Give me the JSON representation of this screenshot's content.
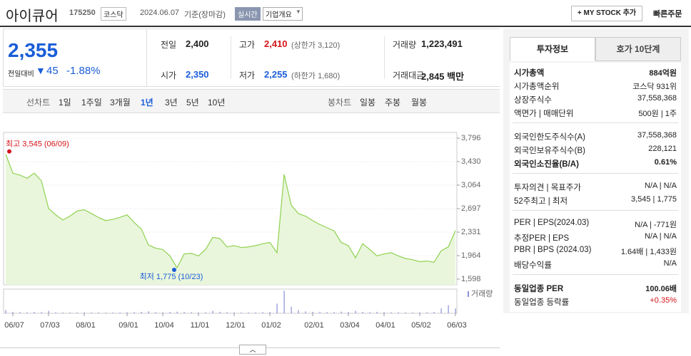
{
  "header": {
    "name": "아이큐어",
    "code": "175250",
    "market": "코스닥",
    "date": "2024.06.07",
    "basis": "기준(장마감)",
    "realtime": "실시간",
    "overview": "기업개요",
    "mystock": "+ MY STOCK 추가",
    "quick": "빠른주문"
  },
  "quote": {
    "price": "2,355",
    "change_label": "전일대비",
    "change": "45",
    "change_pct": "-1.88%"
  },
  "summary": [
    {
      "label": "전일",
      "value": "2,400"
    },
    {
      "label": "고가",
      "value": "2,410",
      "note": "(상한가 3,120)",
      "color": "#d4141a"
    },
    {
      "label": "거래량",
      "value": "1,223,491"
    },
    {
      "label": "시가",
      "value": "2,350",
      "color": "#1a5dd8"
    },
    {
      "label": "저가",
      "value": "2,255",
      "note": "(하한가 1,680)",
      "color": "#1a5dd8"
    },
    {
      "label": "거래대금",
      "value": "2,845 백만"
    }
  ],
  "line_tabs": {
    "label": "선차트",
    "items": [
      "1일",
      "1주일",
      "3개월",
      "1년",
      "3년",
      "5년",
      "10년"
    ],
    "selected": 3
  },
  "candle_tabs": {
    "label": "봉차트",
    "items": [
      "일봉",
      "주봉",
      "월봉"
    ]
  },
  "chart_data": {
    "type": "area",
    "color": "#8fd14f",
    "fill": "#e9f6dc",
    "ylim": [
      1598,
      3796
    ],
    "yticks": [
      {
        "value": 3796,
        "label": "3,796"
      },
      {
        "value": 3430,
        "label": "3,430"
      },
      {
        "value": 3064,
        "label": "3,064"
      },
      {
        "value": 2697,
        "label": "2,697"
      },
      {
        "value": 2331,
        "label": "2,331"
      },
      {
        "value": 1964,
        "label": "1,964"
      },
      {
        "value": 1598,
        "label": "1,598"
      }
    ],
    "categories": [
      null,
      "06/07",
      null,
      null,
      null,
      null,
      "07/03",
      null,
      null,
      null,
      null,
      "08/01",
      null,
      null,
      null,
      null,
      null,
      "09/01",
      null,
      null,
      null,
      null,
      "10/04",
      null,
      null,
      null,
      null,
      "11/01",
      null,
      null,
      null,
      null,
      "12/01",
      null,
      null,
      null,
      null,
      "01/02",
      null,
      null,
      null,
      null,
      null,
      "02/01",
      null,
      null,
      null,
      null,
      "03/04",
      null,
      null,
      null,
      null,
      "04/01",
      null,
      null,
      null,
      null,
      "05/02",
      null,
      null,
      null,
      null,
      "06/03"
    ],
    "values": [
      3545,
      3250,
      3220,
      3170,
      3250,
      3130,
      2700,
      2600,
      2520,
      2580,
      2660,
      2680,
      2620,
      2560,
      2510,
      2530,
      2560,
      2600,
      2480,
      2380,
      2130,
      2080,
      2060,
      1960,
      1775,
      1990,
      2000,
      1960,
      2060,
      2250,
      2230,
      2100,
      2120,
      2090,
      2100,
      2120,
      2150,
      2170,
      2010,
      3230,
      2750,
      2620,
      2580,
      2510,
      2450,
      2400,
      2350,
      2170,
      2120,
      1930,
      2150,
      2060,
      1960,
      1990,
      2010,
      1960,
      1920,
      1900,
      1870,
      1880,
      1860,
      2040,
      2100,
      2355
    ],
    "high_label": "최고 3,545 (06/09)",
    "low_label": "최저 1,775 (10/23)",
    "volume_label": "거래량",
    "volume_color": "#8a8fd6",
    "volume_ylim": [
      0,
      15000000
    ],
    "volume": [
      2000000,
      900000,
      700000,
      600000,
      800000,
      700000,
      1500000,
      600000,
      500000,
      500000,
      500000,
      600000,
      500000,
      500000,
      400000,
      500000,
      500000,
      600000,
      700000,
      900000,
      1200000,
      700000,
      600000,
      800000,
      1000000,
      800000,
      600000,
      500000,
      600000,
      1500000,
      900000,
      700000,
      600000,
      500000,
      500000,
      600000,
      700000,
      800000,
      6000000,
      14000000,
      4000000,
      2000000,
      1200000,
      900000,
      800000,
      700000,
      700000,
      1000000,
      800000,
      1500000,
      900000,
      700000,
      900000,
      700000,
      600000,
      600000,
      500000,
      500000,
      600000,
      600000,
      800000,
      3000000,
      5000000,
      3000000
    ]
  },
  "panel": {
    "tabs": [
      "투자정보",
      "호가 10단계"
    ],
    "groups": [
      [
        {
          "label": "시가총액",
          "value": "884억원",
          "bold": true
        },
        {
          "label": "시가총액순위",
          "value": "코스닥 931위"
        },
        {
          "label": "상장주식수",
          "value": "37,558,368"
        },
        {
          "label": "액면가 | 매매단위",
          "value": "500원 | 1주"
        }
      ],
      [
        {
          "label": "외국인한도주식수(A)",
          "value": "37,558,368"
        },
        {
          "label": "외국인보유주식수(B)",
          "value": "228,121"
        },
        {
          "label": "외국인소진율(B/A)",
          "value": "0.61%",
          "bold": true
        }
      ],
      [
        {
          "label": "투자의견 | 목표주가",
          "value": "N/A | N/A"
        },
        {
          "label": "52주최고 | 최저",
          "value": "3,545 | 1,775"
        }
      ],
      [
        {
          "label": "PER | EPS(2024.03)",
          "value": "N/A | -771원"
        },
        {
          "label": "추정PER | EPS",
          "value": "N/A | N/A"
        },
        {
          "label": "PBR | BPS (2024.03)",
          "value": "1.64배 | 1,433원"
        },
        {
          "label": "배당수익률",
          "value": "N/A"
        }
      ],
      [
        {
          "label": "동일업종 PER",
          "value": "100.06배",
          "bold": true
        },
        {
          "label": "동일업종 등락률",
          "value": "+0.35%",
          "color": "#d4141a"
        }
      ]
    ]
  }
}
